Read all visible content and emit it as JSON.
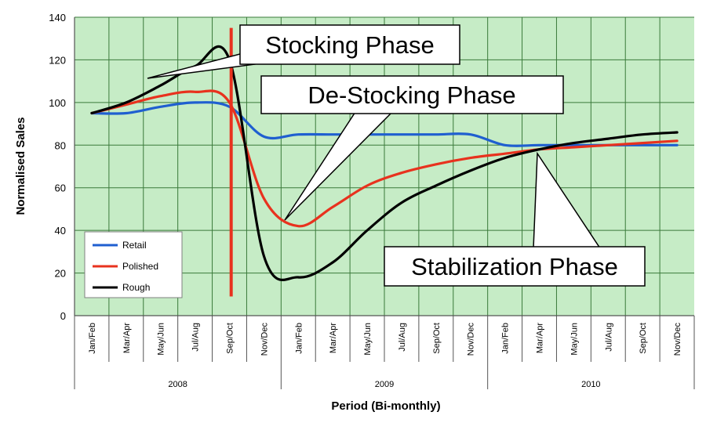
{
  "chart_data": {
    "type": "line",
    "xlabel": "Period (Bi-monthly)",
    "ylabel": "Normalised Sales",
    "ylim": [
      0,
      140
    ],
    "yticks": [
      0,
      20,
      40,
      60,
      80,
      100,
      120,
      140
    ],
    "grid": true,
    "legend_position": "bottom-left",
    "categories": [
      "Jan/Feb",
      "Mar/Apr",
      "May/Jun",
      "Jul/Aug",
      "Sep/Oct",
      "Nov/Dec",
      "Jan/Feb",
      "Mar/Apr",
      "May/Jun",
      "Jul/Aug",
      "Sep/Oct",
      "Nov/Dec",
      "Jan/Feb",
      "Mar/Apr",
      "May/Jun",
      "Jul/Aug",
      "Sep/Oct",
      "Nov/Dec"
    ],
    "years": [
      {
        "label": "2008",
        "start": 0,
        "end": 5
      },
      {
        "label": "2009",
        "start": 6,
        "end": 11
      },
      {
        "label": "2010",
        "start": 12,
        "end": 17
      }
    ],
    "series": [
      {
        "name": "Retail",
        "color": "#1f5fd0",
        "values": [
          95,
          95,
          98,
          100,
          98,
          84,
          85,
          85,
          85,
          85,
          85,
          85,
          80,
          80,
          80,
          80,
          80,
          80
        ]
      },
      {
        "name": "Polished",
        "color": "#e8321e",
        "values": [
          95,
          99,
          103,
          105,
          100,
          55,
          42,
          51,
          61,
          67,
          71,
          74,
          76,
          78,
          79,
          80,
          81,
          82
        ]
      },
      {
        "name": "Rough",
        "color": "#000000",
        "values": [
          95,
          100,
          108,
          117,
          120,
          28,
          18,
          25,
          40,
          53,
          61,
          68,
          74,
          78,
          81,
          83,
          85,
          86
        ]
      }
    ],
    "vertical_marker": {
      "color": "#e8321e",
      "x_index": 4.05,
      "y_range": [
        9,
        135
      ]
    },
    "annotations": [
      {
        "text": "Stocking Phase",
        "pointer_target": [
          2.1,
          112
        ]
      },
      {
        "text": "De-Stocking Phase",
        "pointer_target": [
          6.0,
          45
        ]
      },
      {
        "text": "Stabilization Phase",
        "pointer_target": [
          13.0,
          80
        ]
      }
    ]
  }
}
